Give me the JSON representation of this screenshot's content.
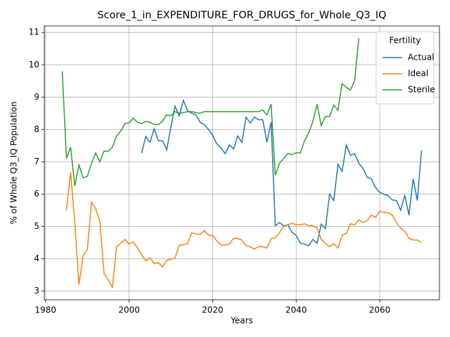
{
  "chart_data": {
    "type": "line",
    "title": "Score_1_in_EXPENDITURE_FOR_DRUGS_for_Whole_Q3_IQ",
    "xlabel": "Years",
    "ylabel": "% of Whole Q3_IQ Population",
    "xlim": [
      1979.7,
      2074.3
    ],
    "ylim": [
      2.73,
      11.2
    ],
    "xticks": [
      1980,
      2000,
      2020,
      2040,
      2060
    ],
    "yticks": [
      3,
      4,
      5,
      6,
      7,
      8,
      9,
      10,
      11
    ],
    "grid": true,
    "legend_title": "Fertility",
    "legend_loc": "upper right",
    "series": [
      {
        "name": "Actual",
        "color": "#1f77b4",
        "x": [
          2003,
          2004,
          2005,
          2006,
          2007,
          2008,
          2009,
          2010,
          2011,
          2012,
          2013,
          2014,
          2015,
          2016,
          2017,
          2018,
          2019,
          2020,
          2021,
          2022,
          2023,
          2024,
          2025,
          2026,
          2027,
          2028,
          2029,
          2030,
          2031,
          2032,
          2033,
          2034,
          2035,
          2036,
          2037,
          2038,
          2039,
          2040,
          2041,
          2042,
          2043,
          2044,
          2045,
          2046,
          2047,
          2048,
          2049,
          2050,
          2051,
          2052,
          2053,
          2054,
          2055,
          2056,
          2057,
          2058,
          2059,
          2060,
          2061,
          2062,
          2063,
          2064,
          2065,
          2066,
          2067,
          2068,
          2069,
          2070
        ],
        "values": [
          7.27,
          7.78,
          7.6,
          8.02,
          7.65,
          7.65,
          7.37,
          8.07,
          8.72,
          8.42,
          8.9,
          8.58,
          8.5,
          8.45,
          8.22,
          8.15,
          8.0,
          7.82,
          7.55,
          7.43,
          7.25,
          7.52,
          7.4,
          7.8,
          7.6,
          8.38,
          8.2,
          8.38,
          8.3,
          8.3,
          7.6,
          8.22,
          5.02,
          5.12,
          5.02,
          5.05,
          4.82,
          4.72,
          4.48,
          4.45,
          4.4,
          4.6,
          4.48,
          5.07,
          4.93,
          6.0,
          5.8,
          6.92,
          6.7,
          7.52,
          7.2,
          7.25,
          6.95,
          6.8,
          6.52,
          6.47,
          6.2,
          6.05,
          6.0,
          5.95,
          5.82,
          5.8,
          5.5,
          5.97,
          5.35,
          6.47,
          5.8,
          7.35
        ]
      },
      {
        "name": "Ideal",
        "color": "#ff7f0e",
        "x": [
          1985,
          1986,
          1987,
          1988,
          1989,
          1990,
          1991,
          1992,
          1993,
          1994,
          1995,
          1996,
          1997,
          1998,
          1999,
          2000,
          2001,
          2002,
          2003,
          2004,
          2005,
          2006,
          2007,
          2008,
          2009,
          2010,
          2011,
          2012,
          2013,
          2014,
          2015,
          2016,
          2017,
          2018,
          2019,
          2020,
          2021,
          2022,
          2023,
          2024,
          2025,
          2026,
          2027,
          2028,
          2029,
          2030,
          2031,
          2032,
          2033,
          2034,
          2035,
          2036,
          2037,
          2038,
          2039,
          2040,
          2041,
          2042,
          2043,
          2044,
          2045,
          2046,
          2047,
          2048,
          2049,
          2050,
          2051,
          2052,
          2053,
          2054,
          2055,
          2056,
          2057,
          2058,
          2059,
          2060,
          2061,
          2062,
          2063,
          2064,
          2065,
          2066,
          2067,
          2068,
          2069,
          2070
        ],
        "values": [
          5.5,
          6.68,
          5.1,
          3.2,
          4.1,
          4.28,
          5.75,
          5.55,
          5.15,
          3.55,
          3.35,
          3.12,
          4.37,
          4.48,
          4.6,
          4.45,
          4.52,
          4.33,
          4.13,
          3.93,
          4.03,
          3.85,
          3.88,
          3.75,
          3.95,
          3.98,
          4.02,
          4.42,
          4.43,
          4.47,
          4.8,
          4.77,
          4.75,
          4.87,
          4.73,
          4.72,
          4.55,
          4.43,
          4.42,
          4.45,
          4.63,
          4.63,
          4.58,
          4.4,
          4.37,
          4.3,
          4.38,
          4.37,
          4.33,
          4.62,
          4.65,
          4.8,
          5.0,
          5.05,
          5.1,
          5.05,
          5.05,
          5.08,
          5.02,
          5.02,
          4.95,
          4.6,
          4.48,
          4.37,
          4.47,
          4.33,
          4.73,
          4.78,
          5.08,
          5.05,
          5.2,
          5.12,
          5.18,
          5.35,
          5.28,
          5.47,
          5.43,
          5.42,
          5.35,
          5.12,
          4.95,
          4.85,
          4.63,
          4.58,
          4.58,
          4.5
        ]
      },
      {
        "name": "Sterile",
        "color": "#2ca02c",
        "x": [
          1984,
          1985,
          1986,
          1987,
          1988,
          1989,
          1990,
          1991,
          1992,
          1993,
          1994,
          1995,
          1996,
          1997,
          1998,
          1999,
          2000,
          2001,
          2002,
          2003,
          2004,
          2005,
          2006,
          2007,
          2008,
          2009,
          2010,
          2011,
          2012,
          2013,
          2014,
          2015,
          2016,
          2017,
          2018,
          2019,
          2020,
          2021,
          2022,
          2023,
          2024,
          2025,
          2026,
          2027,
          2028,
          2029,
          2030,
          2031,
          2032,
          2033,
          2034,
          2035,
          2036,
          2037,
          2038,
          2039,
          2040,
          2041,
          2042,
          2043,
          2044,
          2045,
          2046,
          2047,
          2048,
          2049,
          2050,
          2051,
          2052,
          2053,
          2054,
          2055
        ],
        "values": [
          9.8,
          7.1,
          7.45,
          6.25,
          6.9,
          6.5,
          6.55,
          6.95,
          7.28,
          7.0,
          7.33,
          7.32,
          7.45,
          7.8,
          7.95,
          8.18,
          8.2,
          8.35,
          8.22,
          8.18,
          8.25,
          8.22,
          8.15,
          8.15,
          8.25,
          8.45,
          8.42,
          8.55,
          8.5,
          8.52,
          8.55,
          8.55,
          8.52,
          8.5,
          8.55,
          8.55,
          8.55,
          8.55,
          8.55,
          8.55,
          8.55,
          8.55,
          8.55,
          8.55,
          8.55,
          8.55,
          8.55,
          8.55,
          8.6,
          8.45,
          8.78,
          6.58,
          6.95,
          7.1,
          7.25,
          7.22,
          7.28,
          7.27,
          7.65,
          7.9,
          8.25,
          8.78,
          8.12,
          8.4,
          8.4,
          8.75,
          8.6,
          9.42,
          9.3,
          9.22,
          9.52,
          10.82
        ]
      }
    ]
  }
}
